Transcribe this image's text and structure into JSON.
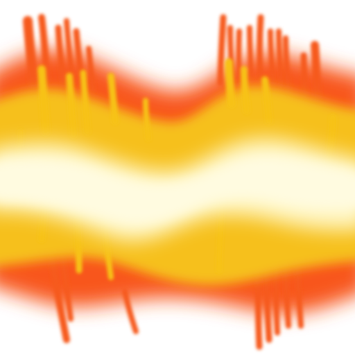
{
  "image": {
    "subject": "flame-texture",
    "background": "#ffffff",
    "palette": {
      "outer": "#f8561c",
      "middle": "#f6c01a",
      "core": "#fff6c4"
    }
  }
}
